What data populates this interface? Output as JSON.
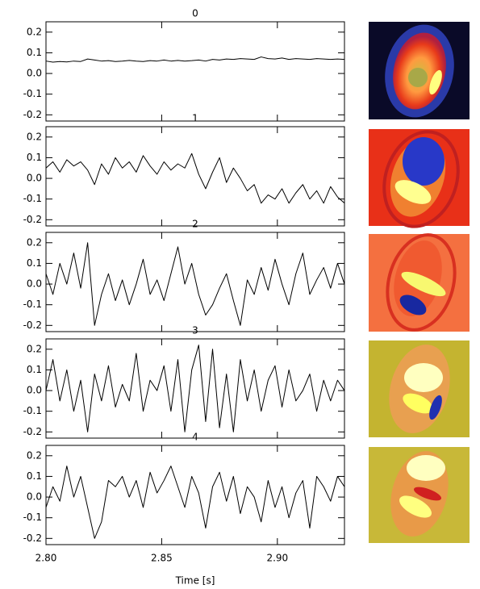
{
  "chart_data": [
    {
      "type": "line",
      "title": "0",
      "color": "#000000",
      "x": [
        2.8,
        2.803,
        2.806,
        2.809,
        2.812,
        2.815,
        2.818,
        2.821,
        2.824,
        2.827,
        2.83,
        2.833,
        2.836,
        2.839,
        2.842,
        2.845,
        2.848,
        2.851,
        2.854,
        2.857,
        2.86,
        2.863,
        2.866,
        2.869,
        2.872,
        2.875,
        2.878,
        2.881,
        2.884,
        2.887,
        2.89,
        2.893,
        2.896,
        2.899,
        2.902,
        2.905,
        2.908,
        2.911,
        2.914,
        2.917,
        2.92,
        2.923,
        2.926,
        2.929
      ],
      "values": [
        0.06,
        0.055,
        0.058,
        0.056,
        0.06,
        0.058,
        0.07,
        0.065,
        0.06,
        0.062,
        0.058,
        0.06,
        0.063,
        0.06,
        0.058,
        0.062,
        0.06,
        0.065,
        0.06,
        0.063,
        0.06,
        0.062,
        0.065,
        0.06,
        0.068,
        0.065,
        0.07,
        0.068,
        0.072,
        0.07,
        0.068,
        0.08,
        0.072,
        0.07,
        0.075,
        0.068,
        0.072,
        0.07,
        0.068,
        0.072,
        0.07,
        0.068,
        0.07,
        0.068
      ],
      "xlim": [
        2.8,
        2.929
      ],
      "xticks": [
        {
          "value": 2.8,
          "label": "2.80"
        },
        2.85,
        {
          "value": 2.9,
          "label": "2.90"
        }
      ],
      "ylim": [
        -0.23,
        0.25
      ],
      "yticks": [
        0.2,
        0.1,
        {
          "value": 0,
          "label": "0.0"
        },
        -0.1,
        -0.2
      ]
    },
    {
      "type": "line",
      "title": "1",
      "color": "#000000",
      "x": [
        2.8,
        2.803,
        2.806,
        2.809,
        2.812,
        2.815,
        2.818,
        2.821,
        2.824,
        2.827,
        2.83,
        2.833,
        2.836,
        2.839,
        2.842,
        2.845,
        2.848,
        2.851,
        2.854,
        2.857,
        2.86,
        2.863,
        2.866,
        2.869,
        2.872,
        2.875,
        2.878,
        2.881,
        2.884,
        2.887,
        2.89,
        2.893,
        2.896,
        2.899,
        2.902,
        2.905,
        2.908,
        2.911,
        2.914,
        2.917,
        2.92,
        2.923,
        2.926,
        2.929
      ],
      "values": [
        0.05,
        0.08,
        0.03,
        0.09,
        0.06,
        0.08,
        0.04,
        -0.03,
        0.07,
        0.02,
        0.1,
        0.05,
        0.08,
        0.03,
        0.11,
        0.06,
        0.02,
        0.08,
        0.04,
        0.07,
        0.05,
        0.12,
        0.02,
        -0.05,
        0.03,
        0.1,
        -0.02,
        0.05,
        0.0,
        -0.06,
        -0.03,
        -0.12,
        -0.08,
        -0.1,
        -0.05,
        -0.12,
        -0.07,
        -0.03,
        -0.1,
        -0.06,
        -0.12,
        -0.04,
        -0.09,
        -0.12
      ],
      "xlim": [
        2.8,
        2.929
      ],
      "xticks": [
        {
          "value": 2.8,
          "label": "2.80"
        },
        2.85,
        {
          "value": 2.9,
          "label": "2.90"
        }
      ],
      "ylim": [
        -0.23,
        0.25
      ],
      "yticks": [
        0.2,
        0.1,
        {
          "value": 0,
          "label": "0.0"
        },
        -0.1,
        -0.2
      ]
    },
    {
      "type": "line",
      "title": "2",
      "color": "#000000",
      "x": [
        2.8,
        2.803,
        2.806,
        2.809,
        2.812,
        2.815,
        2.818,
        2.821,
        2.824,
        2.827,
        2.83,
        2.833,
        2.836,
        2.839,
        2.842,
        2.845,
        2.848,
        2.851,
        2.854,
        2.857,
        2.86,
        2.863,
        2.866,
        2.869,
        2.872,
        2.875,
        2.878,
        2.881,
        2.884,
        2.887,
        2.89,
        2.893,
        2.896,
        2.899,
        2.902,
        2.905,
        2.908,
        2.911,
        2.914,
        2.917,
        2.92,
        2.923,
        2.926,
        2.929
      ],
      "values": [
        0.05,
        -0.05,
        0.1,
        0.0,
        0.15,
        -0.02,
        0.2,
        -0.2,
        -0.05,
        0.05,
        -0.08,
        0.02,
        -0.1,
        0.0,
        0.12,
        -0.05,
        0.02,
        -0.08,
        0.05,
        0.18,
        0.0,
        0.1,
        -0.05,
        -0.15,
        -0.1,
        -0.02,
        0.05,
        -0.08,
        -0.2,
        0.02,
        -0.05,
        0.08,
        -0.03,
        0.12,
        0.0,
        -0.1,
        0.05,
        0.15,
        -0.05,
        0.02,
        0.08,
        -0.02,
        0.1,
        0.0
      ],
      "xlim": [
        2.8,
        2.929
      ],
      "xticks": [
        {
          "value": 2.8,
          "label": "2.80"
        },
        2.85,
        {
          "value": 2.9,
          "label": "2.90"
        }
      ],
      "ylim": [
        -0.23,
        0.25
      ],
      "yticks": [
        0.2,
        0.1,
        {
          "value": 0,
          "label": "0.0"
        },
        -0.1,
        -0.2
      ]
    },
    {
      "type": "line",
      "title": "3",
      "color": "#000000",
      "x": [
        2.8,
        2.803,
        2.806,
        2.809,
        2.812,
        2.815,
        2.818,
        2.821,
        2.824,
        2.827,
        2.83,
        2.833,
        2.836,
        2.839,
        2.842,
        2.845,
        2.848,
        2.851,
        2.854,
        2.857,
        2.86,
        2.863,
        2.866,
        2.869,
        2.872,
        2.875,
        2.878,
        2.881,
        2.884,
        2.887,
        2.89,
        2.893,
        2.896,
        2.899,
        2.902,
        2.905,
        2.908,
        2.911,
        2.914,
        2.917,
        2.92,
        2.923,
        2.926,
        2.929
      ],
      "values": [
        0.0,
        0.15,
        -0.05,
        0.1,
        -0.1,
        0.05,
        -0.2,
        0.08,
        -0.05,
        0.12,
        -0.08,
        0.03,
        -0.05,
        0.18,
        -0.1,
        0.05,
        0.0,
        0.12,
        -0.1,
        0.15,
        -0.2,
        0.1,
        0.22,
        -0.15,
        0.2,
        -0.18,
        0.08,
        -0.2,
        0.15,
        -0.05,
        0.1,
        -0.1,
        0.05,
        0.12,
        -0.08,
        0.1,
        -0.05,
        0.0,
        0.08,
        -0.1,
        0.05,
        -0.05,
        0.05,
        0.0
      ],
      "xlim": [
        2.8,
        2.929
      ],
      "xticks": [
        {
          "value": 2.8,
          "label": "2.80"
        },
        2.85,
        {
          "value": 2.9,
          "label": "2.90"
        }
      ],
      "ylim": [
        -0.23,
        0.25
      ],
      "yticks": [
        0.2,
        0.1,
        {
          "value": 0,
          "label": "0.0"
        },
        -0.1,
        -0.2
      ]
    },
    {
      "type": "line",
      "title": "4",
      "color": "#000000",
      "xlabel": "Time [s]",
      "x": [
        2.8,
        2.803,
        2.806,
        2.809,
        2.812,
        2.815,
        2.818,
        2.821,
        2.824,
        2.827,
        2.83,
        2.833,
        2.836,
        2.839,
        2.842,
        2.845,
        2.848,
        2.851,
        2.854,
        2.857,
        2.86,
        2.863,
        2.866,
        2.869,
        2.872,
        2.875,
        2.878,
        2.881,
        2.884,
        2.887,
        2.89,
        2.893,
        2.896,
        2.899,
        2.902,
        2.905,
        2.908,
        2.911,
        2.914,
        2.917,
        2.92,
        2.923,
        2.926,
        2.929
      ],
      "values": [
        -0.05,
        0.05,
        -0.02,
        0.15,
        0.0,
        0.1,
        -0.05,
        -0.2,
        -0.12,
        0.08,
        0.05,
        0.1,
        0.0,
        0.08,
        -0.05,
        0.12,
        0.02,
        0.08,
        0.15,
        0.05,
        -0.05,
        0.1,
        0.02,
        -0.15,
        0.05,
        0.12,
        -0.02,
        0.1,
        -0.08,
        0.05,
        0.0,
        -0.12,
        0.08,
        -0.05,
        0.05,
        -0.1,
        0.02,
        0.08,
        -0.15,
        0.1,
        0.05,
        -0.02,
        0.1,
        0.05
      ],
      "xlim": [
        2.8,
        2.929
      ],
      "xticks": [
        {
          "value": 2.8,
          "label": "2.80"
        },
        2.85,
        {
          "value": 2.9,
          "label": "2.90"
        }
      ],
      "ylim": [
        -0.23,
        0.25
      ],
      "yticks": [
        0.2,
        0.1,
        {
          "value": 0,
          "label": "0.0"
        },
        -0.1,
        -0.2
      ]
    }
  ]
}
